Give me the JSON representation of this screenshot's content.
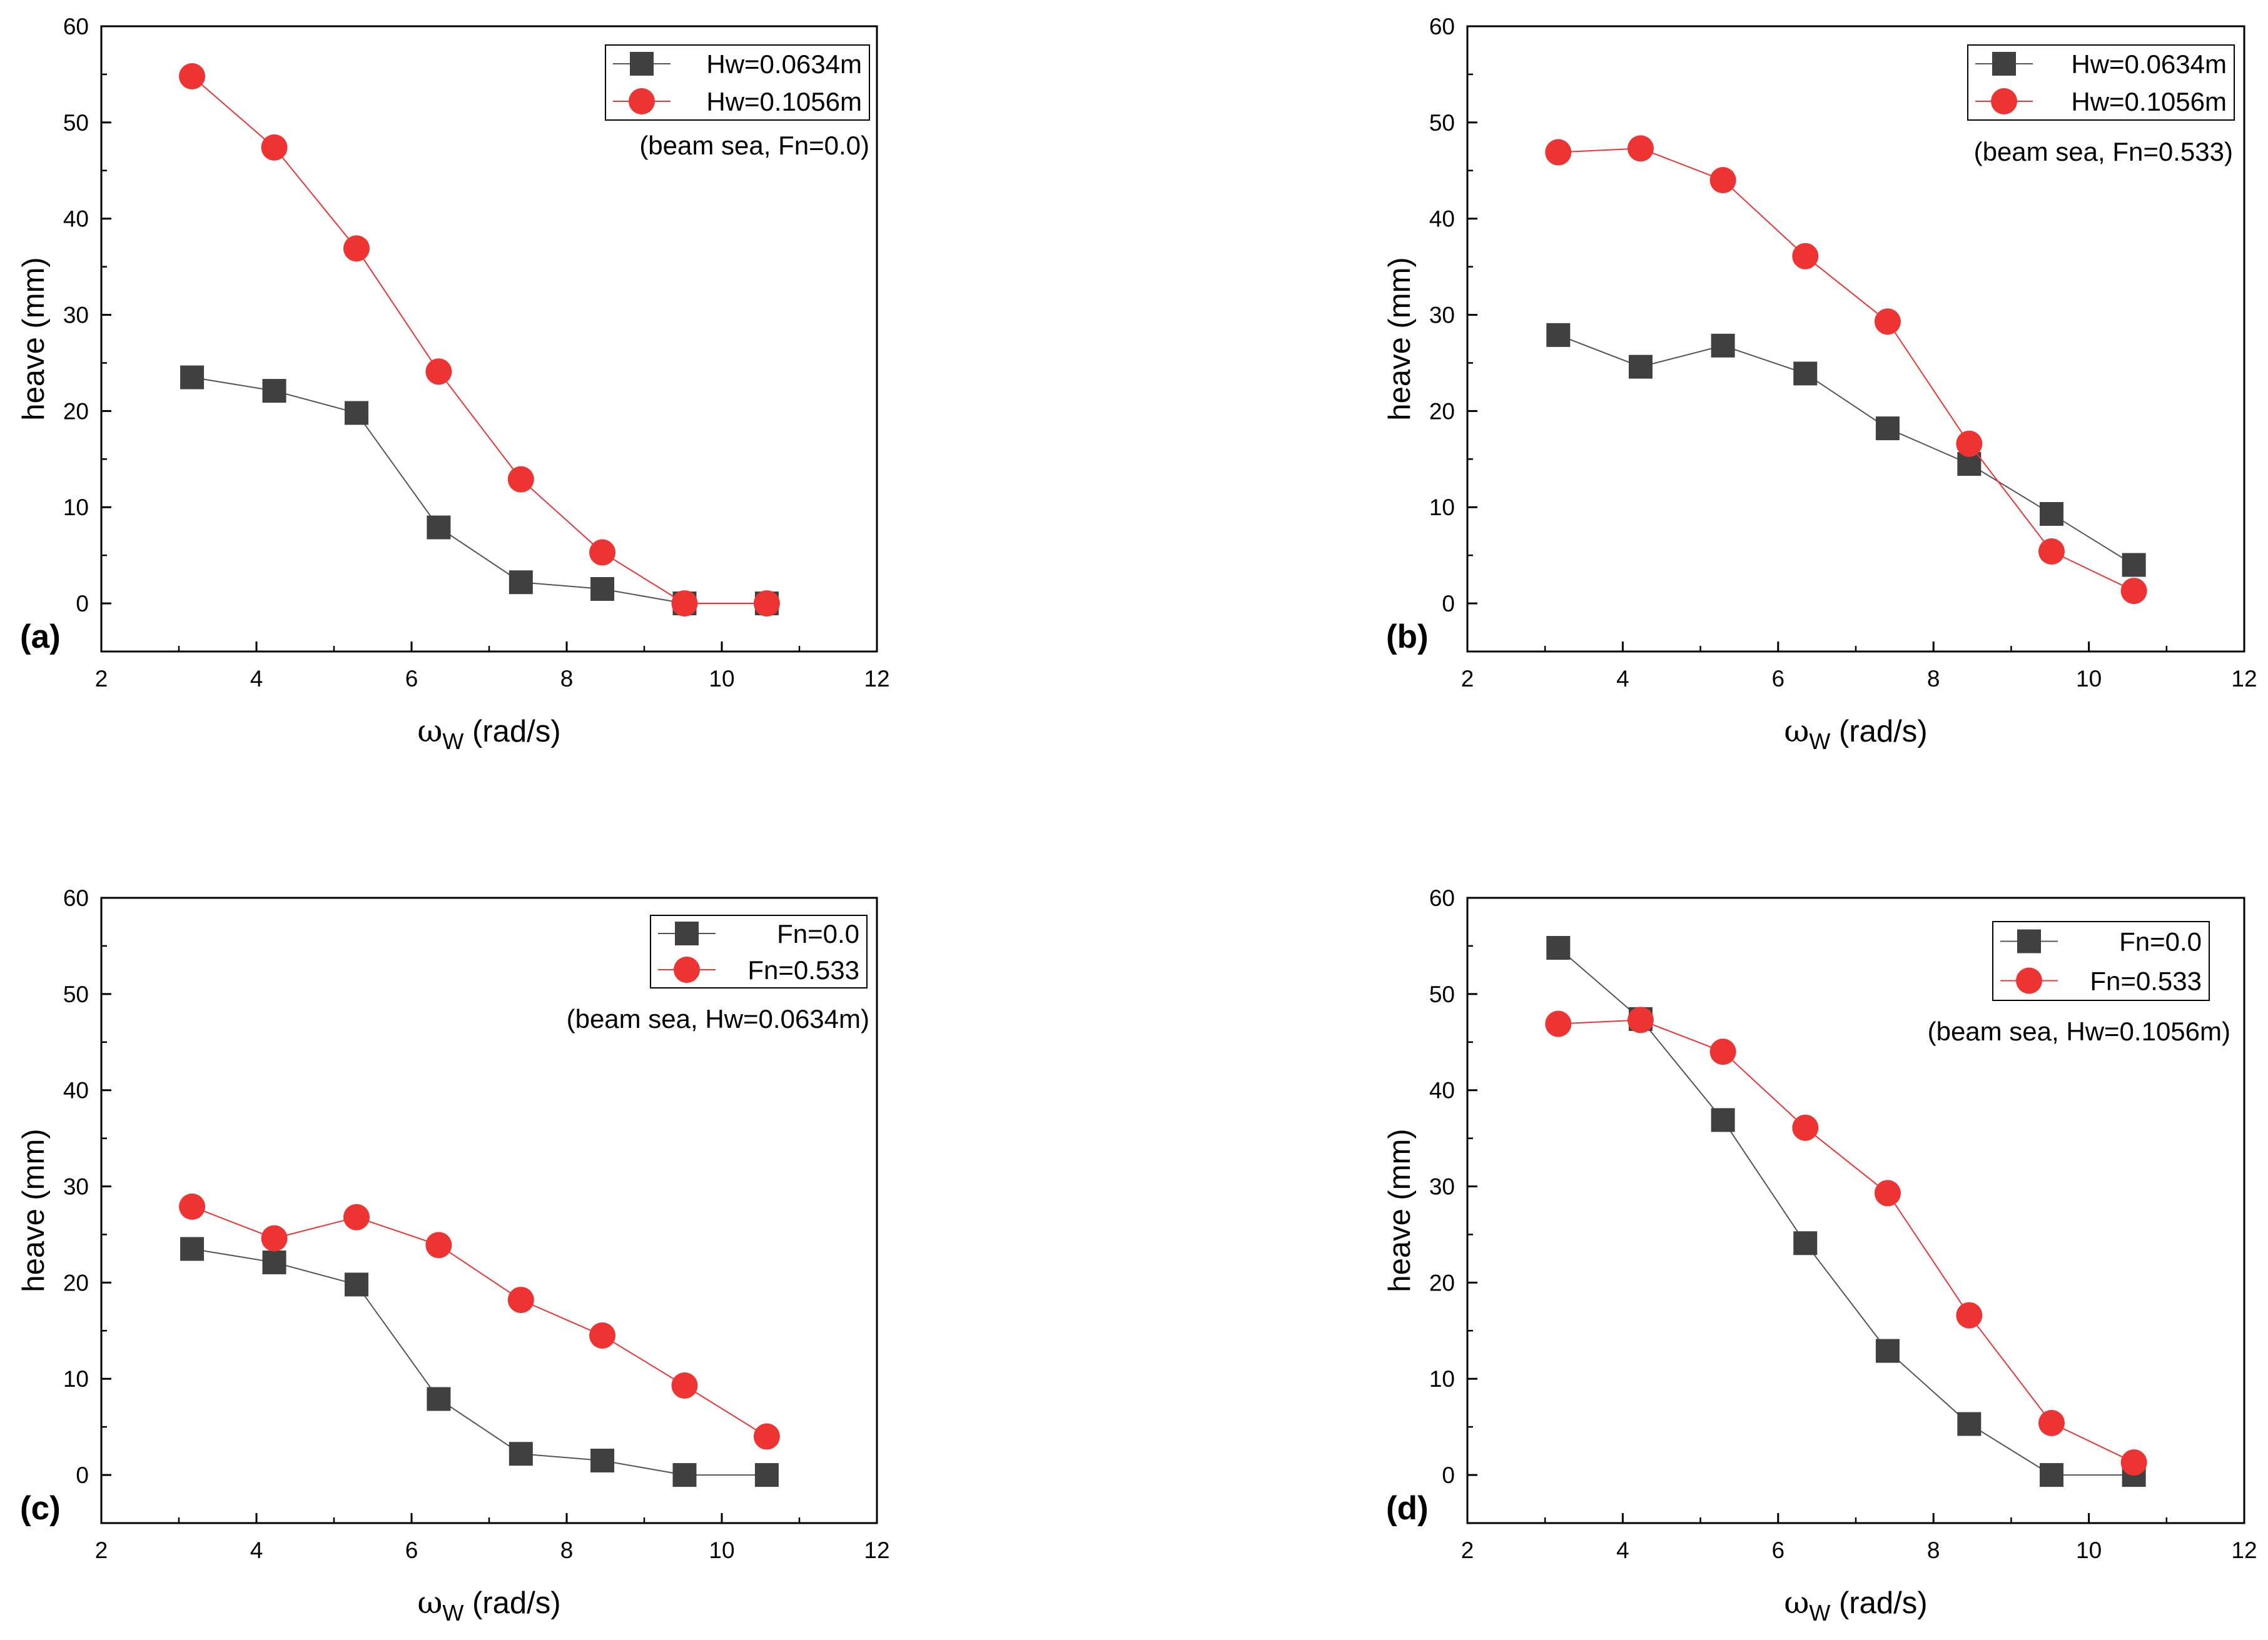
{
  "colors": {
    "series_black": "#404040",
    "series_black_line": "#555555",
    "series_red": "#ee3333",
    "series_red_line": "#ee3333",
    "axis": "#000000"
  },
  "chart_data": [
    {
      "type": "line",
      "panel_label": "(a)",
      "annotation": "(beam sea, Fn=0.0)",
      "xlabel": {
        "symbol": "ω",
        "subscript": "W",
        "unit": " (rad/s)"
      },
      "ylabel": "heave (mm)",
      "xlim": [
        2,
        12
      ],
      "ylim": [
        -5,
        60
      ],
      "xticks": [
        2,
        4,
        6,
        8,
        10,
        12
      ],
      "yticks": [
        0,
        10,
        20,
        30,
        40,
        50,
        60
      ],
      "legend_position": "top-right",
      "x": [
        3.17,
        4.23,
        5.29,
        6.35,
        7.41,
        8.46,
        9.52,
        10.58
      ],
      "series": [
        {
          "name": "Hw=0.0634m",
          "marker": "square",
          "color": "black",
          "values": [
            23.5,
            22.1,
            19.8,
            7.9,
            2.2,
            1.5,
            0.0,
            0.0
          ]
        },
        {
          "name": "Hw=0.1056m",
          "marker": "circle",
          "color": "red",
          "values": [
            54.8,
            47.4,
            36.9,
            24.1,
            12.9,
            5.3,
            0.0,
            0.0
          ]
        }
      ]
    },
    {
      "type": "line",
      "panel_label": "(b)",
      "annotation": "(beam sea, Fn=0.533)",
      "xlabel": {
        "symbol": "ω",
        "subscript": "W",
        "unit": " (rad/s)"
      },
      "ylabel": "heave (mm)",
      "xlim": [
        2,
        12
      ],
      "ylim": [
        -5,
        60
      ],
      "xticks": [
        2,
        4,
        6,
        8,
        10,
        12
      ],
      "yticks": [
        0,
        10,
        20,
        30,
        40,
        50,
        60
      ],
      "legend_position": "top-right",
      "x": [
        3.17,
        4.23,
        5.29,
        6.35,
        7.41,
        8.46,
        9.52,
        10.58
      ],
      "series": [
        {
          "name": "Hw=0.0634m",
          "marker": "square",
          "color": "black",
          "values": [
            27.9,
            24.6,
            26.8,
            23.9,
            18.2,
            14.5,
            9.3,
            4.0
          ]
        },
        {
          "name": "Hw=0.1056m",
          "marker": "circle",
          "color": "red",
          "values": [
            46.9,
            47.3,
            44.0,
            36.1,
            29.3,
            16.6,
            5.4,
            1.3
          ]
        }
      ]
    },
    {
      "type": "line",
      "panel_label": "(c)",
      "annotation": "(beam sea, Hw=0.0634m)",
      "xlabel": {
        "symbol": "ω",
        "subscript": "W",
        "unit": " (rad/s)"
      },
      "ylabel": "heave (mm)",
      "xlim": [
        2,
        12
      ],
      "ylim": [
        -5,
        60
      ],
      "xticks": [
        2,
        4,
        6,
        8,
        10,
        12
      ],
      "yticks": [
        0,
        10,
        20,
        30,
        40,
        50,
        60
      ],
      "legend_position": "top-right",
      "x": [
        3.17,
        4.23,
        5.29,
        6.35,
        7.41,
        8.46,
        9.52,
        10.58
      ],
      "series": [
        {
          "name": "Fn=0.0",
          "marker": "square",
          "color": "black",
          "values": [
            23.5,
            22.1,
            19.8,
            7.9,
            2.2,
            1.5,
            0.0,
            0.0
          ]
        },
        {
          "name": "Fn=0.533",
          "marker": "circle",
          "color": "red",
          "values": [
            27.9,
            24.6,
            26.8,
            23.9,
            18.2,
            14.5,
            9.3,
            4.0
          ]
        }
      ]
    },
    {
      "type": "line",
      "panel_label": "(d)",
      "annotation": "(beam sea, Hw=0.1056m)",
      "xlabel": {
        "symbol": "ω",
        "subscript": "W",
        "unit": " (rad/s)"
      },
      "ylabel": "heave (mm)",
      "xlim": [
        2,
        12
      ],
      "ylim": [
        -5,
        60
      ],
      "xticks": [
        2,
        4,
        6,
        8,
        10,
        12
      ],
      "yticks": [
        0,
        10,
        20,
        30,
        40,
        50,
        60
      ],
      "legend_position": "top-right",
      "x": [
        3.17,
        4.23,
        5.29,
        6.35,
        7.41,
        8.46,
        9.52,
        10.58
      ],
      "series": [
        {
          "name": "Fn=0.0",
          "marker": "square",
          "color": "black",
          "values": [
            54.8,
            47.4,
            36.9,
            24.1,
            12.9,
            5.3,
            0.0,
            0.0
          ]
        },
        {
          "name": "Fn=0.533",
          "marker": "circle",
          "color": "red",
          "values": [
            46.9,
            47.3,
            44.0,
            36.1,
            29.3,
            16.6,
            5.4,
            1.3
          ]
        }
      ]
    }
  ]
}
